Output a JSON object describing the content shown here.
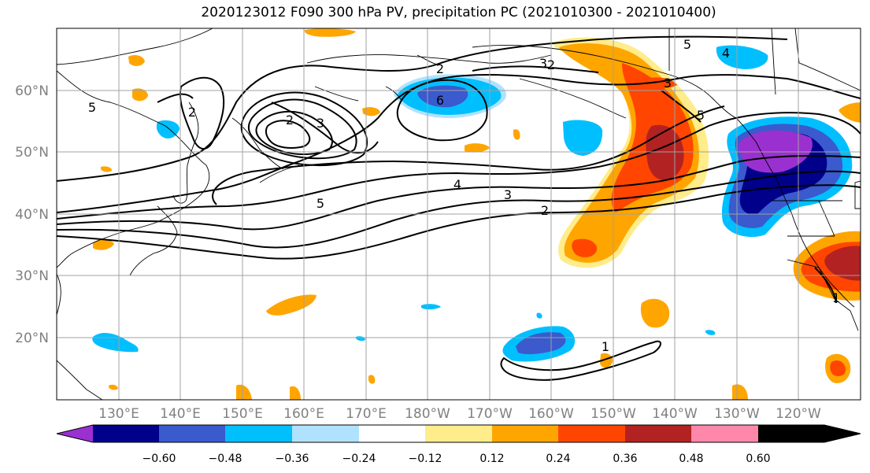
{
  "title": "2020123012 F090 300 hPa PV, precipitation PC (2021010300 - 2021010400)",
  "map": {
    "lat_labels": [
      "60°N",
      "50°N",
      "40°N",
      "30°N",
      "20°N"
    ],
    "lon_labels": [
      "130°E",
      "140°E",
      "150°E",
      "160°E",
      "170°E",
      "180°W",
      "170°W",
      "160°W",
      "150°W",
      "140°W",
      "130°W",
      "120°W"
    ],
    "contour_labels": [
      "5",
      "2",
      "2",
      "3",
      "6",
      "2",
      "5",
      "4",
      "3",
      "3",
      "2",
      "5",
      "4",
      "3",
      "2",
      "1",
      "1",
      "2"
    ]
  },
  "colorbar": {
    "colors": [
      "#9b30d0",
      "#00008b",
      "#3a5acd",
      "#00bfff",
      "#b0e2ff",
      "#ffffff",
      "#ffec8b",
      "#ffa500",
      "#ff4500",
      "#b22222",
      "#ff88aa"
    ],
    "tick_labels": [
      "−0.60",
      "−0.48",
      "−0.36",
      "−0.24",
      "−0.12",
      "0.12",
      "0.24",
      "0.36",
      "0.48",
      "0.60"
    ]
  }
}
